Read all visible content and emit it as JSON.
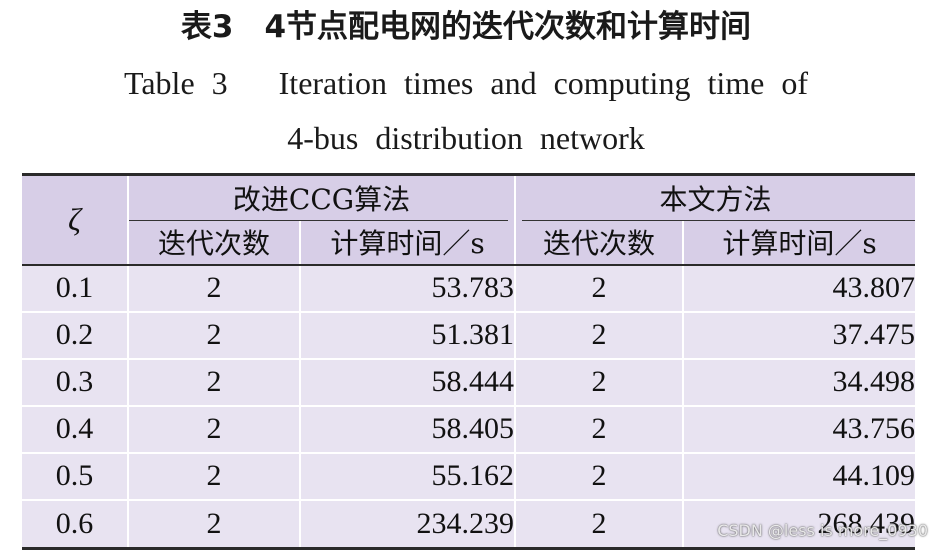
{
  "title_cn": "表3　4节点配电网的迭代次数和计算时间",
  "title_en_line1": "Table 3   Iteration times and computing time of",
  "title_en_line2": "4-bus distribution network",
  "table": {
    "header": {
      "zeta": "ζ",
      "group_ccg": "改进CCG算法",
      "group_proposed": "本文方法",
      "ccg_iter": "迭代次数",
      "ccg_time": "计算时间／s",
      "prop_iter": "迭代次数",
      "prop_time": "计算时间／s"
    },
    "rows": [
      {
        "zeta": "0.1",
        "ccg_iter": "2",
        "ccg_time": "53.783",
        "prop_iter": "2",
        "prop_time": "43.807"
      },
      {
        "zeta": "0.2",
        "ccg_iter": "2",
        "ccg_time": "51.381",
        "prop_iter": "2",
        "prop_time": "37.475"
      },
      {
        "zeta": "0.3",
        "ccg_iter": "2",
        "ccg_time": "58.444",
        "prop_iter": "2",
        "prop_time": "34.498"
      },
      {
        "zeta": "0.4",
        "ccg_iter": "2",
        "ccg_time": "58.405",
        "prop_iter": "2",
        "prop_time": "43.756"
      },
      {
        "zeta": "0.5",
        "ccg_iter": "2",
        "ccg_time": "55.162",
        "prop_iter": "2",
        "prop_time": "44.109"
      },
      {
        "zeta": "0.6",
        "ccg_iter": "2",
        "ccg_time": "234.239",
        "prop_iter": "2",
        "prop_time": "268.439"
      }
    ]
  },
  "watermark": "CSDN @less is more_0930",
  "colors": {
    "header_bg": "#d7cee7",
    "body_bg": "#e8e3f1",
    "rule": "#2a2a2a"
  }
}
